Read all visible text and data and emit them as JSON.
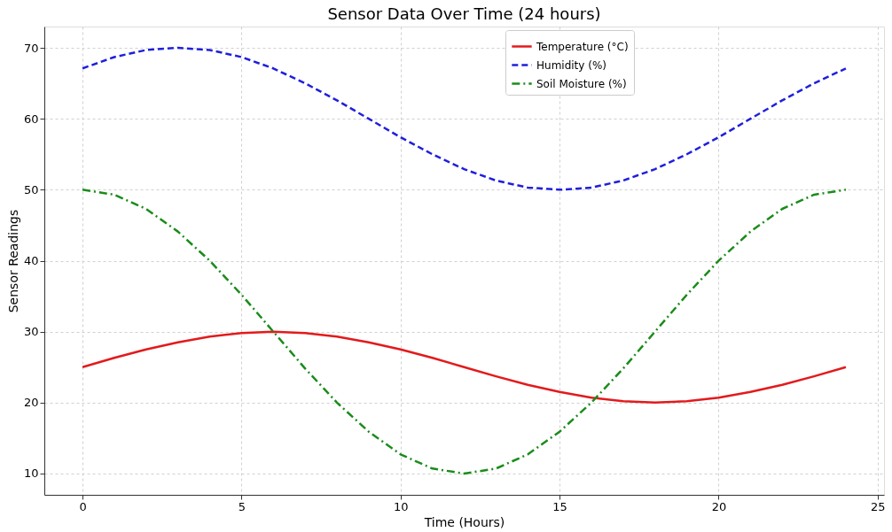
{
  "chart_data": {
    "type": "line",
    "title": "Sensor Data Over Time (24 hours)",
    "xlabel": "Time (Hours)",
    "ylabel": "Sensor Readings",
    "x": [
      0,
      1,
      2,
      3,
      4,
      5,
      6,
      7,
      8,
      9,
      10,
      11,
      12,
      13,
      14,
      15,
      16,
      17,
      18,
      19,
      20,
      21,
      22,
      23,
      24
    ],
    "series": [
      {
        "name": "Temperature (°C)",
        "color": "#e31a1c",
        "line_style": "solid",
        "values": [
          25,
          26.3,
          27.5,
          28.5,
          29.3,
          29.8,
          30,
          29.8,
          29.3,
          28.5,
          27.5,
          26.3,
          25,
          23.7,
          22.5,
          21.5,
          20.7,
          20.2,
          20,
          20.2,
          20.7,
          21.5,
          22.5,
          23.7,
          25
        ]
      },
      {
        "name": "Humidity (%)",
        "color": "#1f1fdd",
        "line_style": "dashed",
        "values": [
          67.1,
          68.7,
          69.7,
          70,
          69.7,
          68.7,
          67.1,
          65,
          62.6,
          60,
          57.4,
          55,
          52.9,
          51.3,
          50.3,
          50,
          50.3,
          51.3,
          52.9,
          55,
          57.4,
          60,
          62.6,
          65,
          67.1
        ]
      },
      {
        "name": "Soil Moisture (%)",
        "color": "#1a8c1a",
        "line_style": "dashdot",
        "values": [
          50,
          49.3,
          47.3,
          44.1,
          40,
          35.2,
          30,
          24.8,
          20,
          15.9,
          12.7,
          10.7,
          10,
          10.7,
          12.7,
          15.9,
          20,
          24.8,
          30,
          35.2,
          40,
          44.1,
          47.3,
          49.3,
          50
        ]
      }
    ],
    "xlim": [
      -1.2,
      25.2
    ],
    "xticks": [
      0,
      5,
      10,
      15,
      20,
      25
    ],
    "ylim": [
      7,
      73
    ],
    "yticks": [
      10,
      20,
      30,
      40,
      50,
      60,
      70
    ],
    "grid": true,
    "legend": "top",
    "marker": "none"
  }
}
